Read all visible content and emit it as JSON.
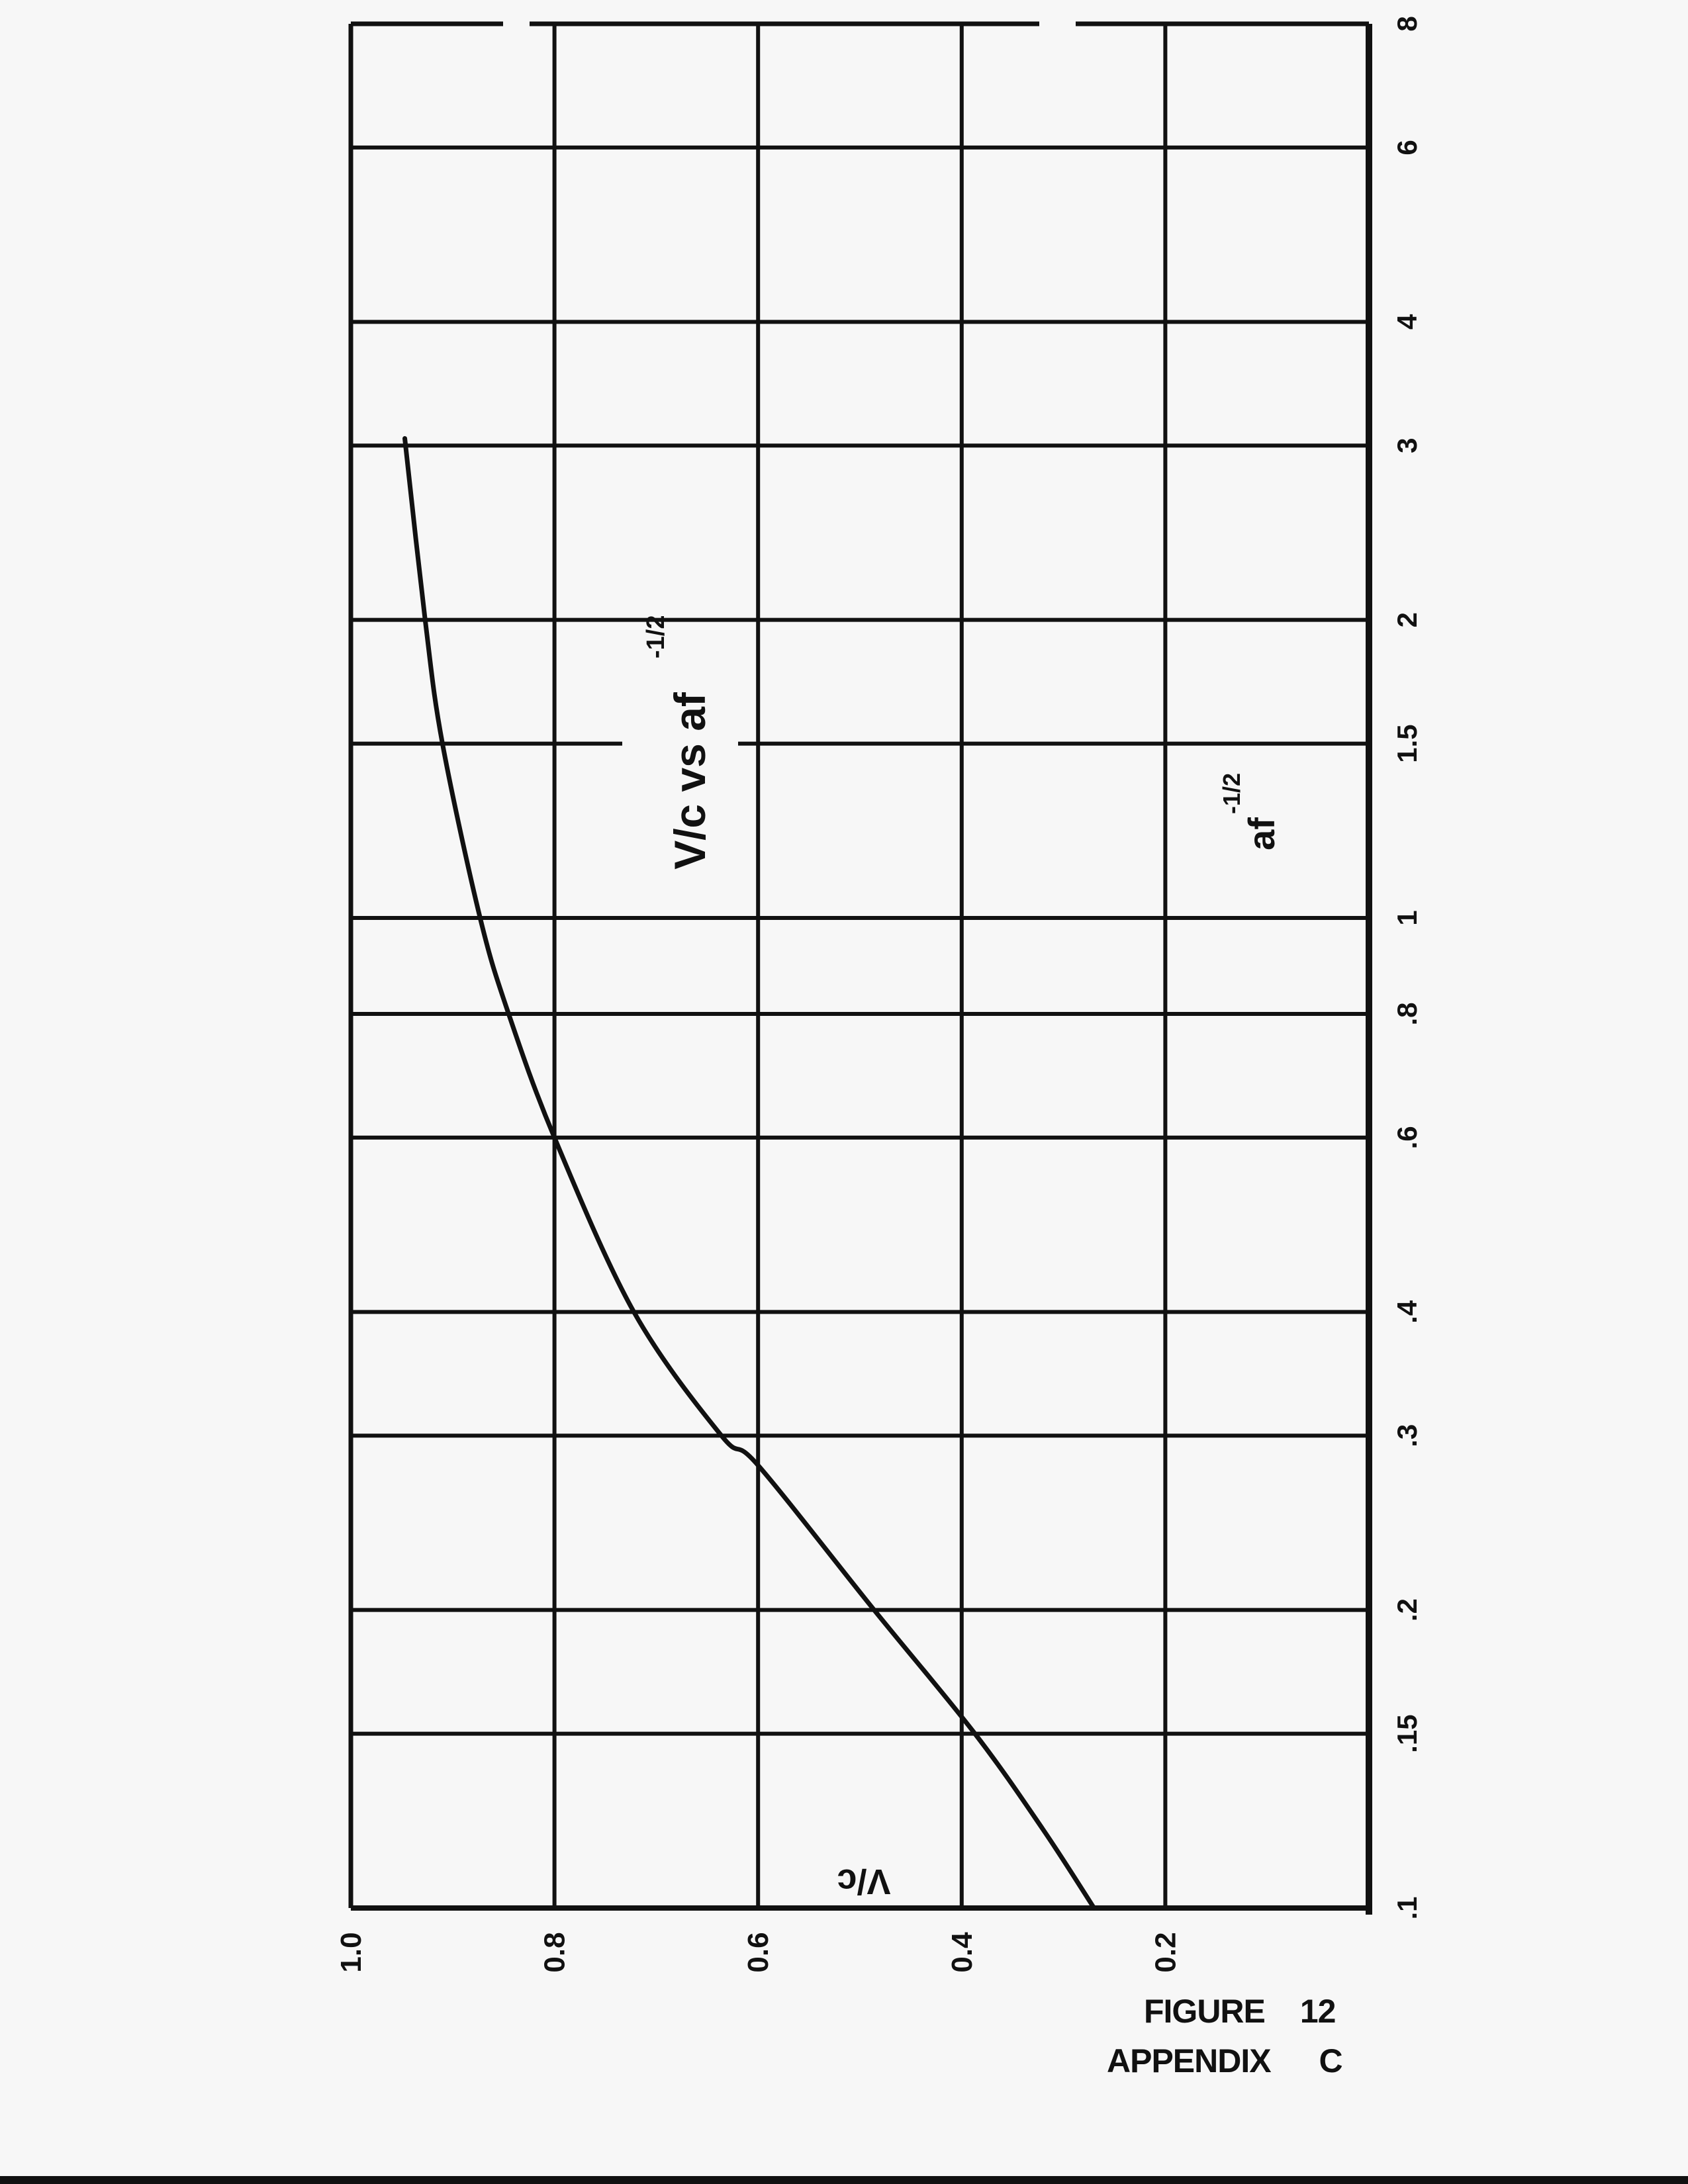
{
  "chart_data": {
    "type": "line",
    "orientation": "rotated 90 degrees counter-clockwise on the page",
    "title": "V/c vs af",
    "title_exponent": "-1/2",
    "xlabel": "af",
    "xlabel_exponent": "-1/2",
    "ylabel": "V/c",
    "x_scale": "log",
    "xlim": [
      0.1,
      8
    ],
    "ylim": [
      0,
      1.0
    ],
    "grid": true,
    "x_ticks": [
      0.1,
      0.15,
      0.2,
      0.3,
      0.4,
      0.6,
      0.8,
      1,
      1.5,
      2,
      3,
      4,
      6,
      8
    ],
    "x_tick_labels": [
      ".1",
      ".15",
      ".2",
      ".3",
      ".4",
      ".6",
      ".8",
      "1",
      "1.5",
      "2",
      "3",
      "4",
      "6",
      "8"
    ],
    "y_ticks": [
      1.0,
      0.8,
      0.6,
      0.4,
      0.2
    ],
    "y_tick_labels": [
      "1.0",
      "0.8",
      "0.6",
      "0.4",
      "0.2"
    ],
    "series": [
      {
        "x": [
          0.1,
          0.12,
          0.15,
          0.2,
          0.28,
          0.3,
          0.4,
          0.6,
          0.8,
          1,
          1.5,
          2,
          3.05
        ],
        "y": [
          0.27,
          0.32,
          0.387,
          0.486,
          0.6,
          0.636,
          0.722,
          0.8,
          0.845,
          0.873,
          0.91,
          0.927,
          0.947
        ]
      }
    ],
    "line_color": "#111111"
  },
  "caption": {
    "figure": "FIGURE",
    "figure_number": "12",
    "appendix": "APPENDIX",
    "appendix_letter": "C"
  }
}
